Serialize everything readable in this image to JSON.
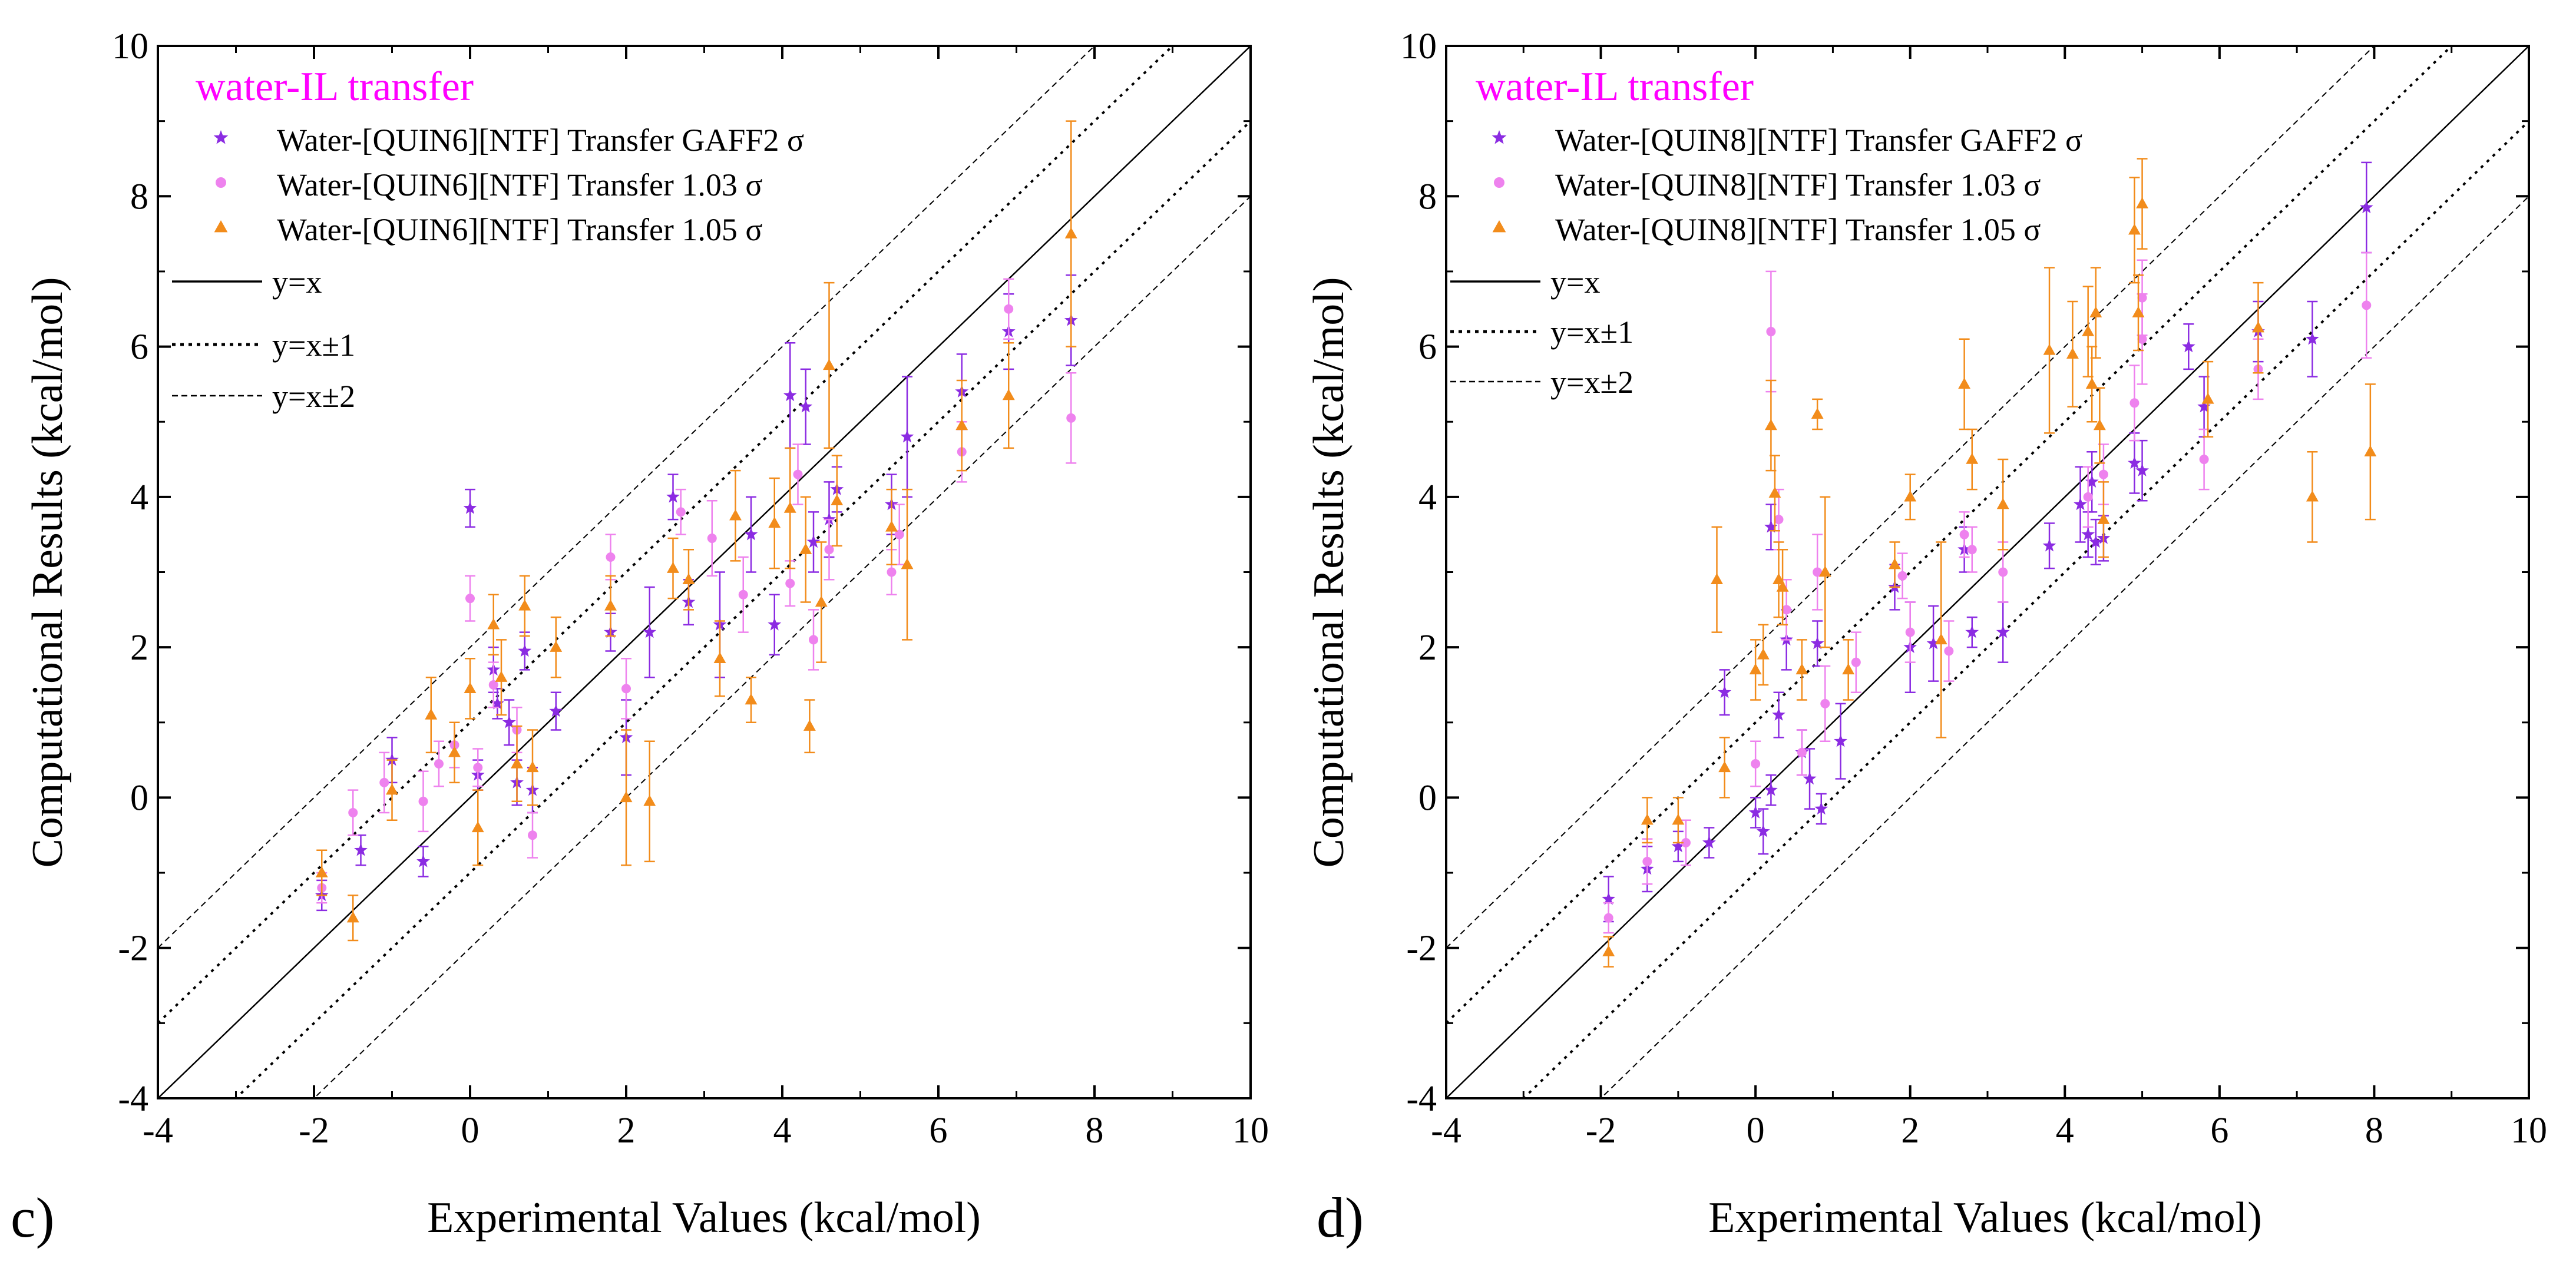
{
  "figure": {
    "colors": {
      "gaff2": "#8B2BE2",
      "s103": "#EE82EE",
      "s105": "#F28C1B",
      "title": "#FF00FF"
    }
  },
  "chart_data": [
    {
      "type": "scatter",
      "panel_label": "c)",
      "title": "water-IL transfer",
      "xlabel": "Experimental Values (kcal/mol)",
      "ylabel": "Computational Results (kcal/mol)",
      "xlim": [
        -4,
        10
      ],
      "ylim": [
        -4,
        10
      ],
      "xticks": [
        "-4",
        "-2",
        "0",
        "2",
        "4",
        "6",
        "8",
        "10"
      ],
      "yticks": [
        "-4",
        "-2",
        "0",
        "2",
        "4",
        "6",
        "8",
        "10"
      ],
      "legend": [
        {
          "label": "Water-[QUIN6][NTF] Transfer GAFF2 σ",
          "marker": "star",
          "color": "#8B2BE2"
        },
        {
          "label": "Water-[QUIN6][NTF] Transfer 1.03 σ",
          "marker": "circle",
          "color": "#EE82EE"
        },
        {
          "label": "Water-[QUIN6][NTF] Transfer 1.05 σ",
          "marker": "triangle",
          "color": "#F28C1B"
        },
        {
          "label": "y=x",
          "line": "solid"
        },
        {
          "label": "y=x±1",
          "line": "dotted"
        },
        {
          "label": "y=x±2",
          "line": "dashed"
        }
      ],
      "series": [
        {
          "name": "Water-[QUIN6][NTF] Transfer GAFF2 σ",
          "points": [
            [
              -1.9,
              -1.3,
              0.2
            ],
            [
              -1.4,
              -0.7,
              0.2
            ],
            [
              -1.0,
              0.5,
              0.3
            ],
            [
              -0.6,
              -0.85,
              0.2
            ],
            [
              0.0,
              3.85,
              0.25
            ],
            [
              0.1,
              0.3,
              0.2
            ],
            [
              0.3,
              1.7,
              0.3
            ],
            [
              0.35,
              1.25,
              0.2
            ],
            [
              0.5,
              1.0,
              0.3
            ],
            [
              0.6,
              0.2,
              0.3
            ],
            [
              0.7,
              1.95,
              0.25
            ],
            [
              0.8,
              0.1,
              0.3
            ],
            [
              1.1,
              1.15,
              0.25
            ],
            [
              1.8,
              2.2,
              0.25
            ],
            [
              2.0,
              0.8,
              0.5
            ],
            [
              2.3,
              2.2,
              0.6
            ],
            [
              2.6,
              4.0,
              0.3
            ],
            [
              2.8,
              2.6,
              0.3
            ],
            [
              3.2,
              2.3,
              0.7
            ],
            [
              3.6,
              3.5,
              0.5
            ],
            [
              3.9,
              2.3,
              0.4
            ],
            [
              4.1,
              5.35,
              0.7
            ],
            [
              4.3,
              5.2,
              0.5
            ],
            [
              4.4,
              3.4,
              0.4
            ],
            [
              4.6,
              3.7,
              0.5
            ],
            [
              4.7,
              4.1,
              0.3
            ],
            [
              5.4,
              3.9,
              0.4
            ],
            [
              5.6,
              4.8,
              0.8
            ],
            [
              6.3,
              5.4,
              0.5
            ],
            [
              6.9,
              6.2,
              0.5
            ],
            [
              7.7,
              6.35,
              0.6
            ]
          ]
        },
        {
          "name": "Water-[QUIN6][NTF] Transfer 1.03 σ",
          "points": [
            [
              -1.9,
              -1.2,
              0.2
            ],
            [
              -1.5,
              -0.2,
              0.3
            ],
            [
              -1.1,
              0.2,
              0.4
            ],
            [
              -0.6,
              -0.05,
              0.4
            ],
            [
              -0.4,
              0.45,
              0.3
            ],
            [
              -0.2,
              0.7,
              0.3
            ],
            [
              0.0,
              2.65,
              0.3
            ],
            [
              0.1,
              0.4,
              0.25
            ],
            [
              0.3,
              1.5,
              0.3
            ],
            [
              0.6,
              0.9,
              0.3
            ],
            [
              0.8,
              -0.5,
              0.3
            ],
            [
              1.8,
              3.2,
              0.3
            ],
            [
              2.0,
              1.45,
              0.4
            ],
            [
              2.7,
              3.8,
              0.3
            ],
            [
              3.1,
              3.45,
              0.5
            ],
            [
              3.5,
              2.7,
              0.5
            ],
            [
              4.1,
              2.85,
              0.3
            ],
            [
              4.2,
              4.3,
              0.4
            ],
            [
              4.4,
              2.1,
              0.4
            ],
            [
              4.6,
              3.3,
              0.4
            ],
            [
              5.4,
              3.0,
              0.3
            ],
            [
              5.5,
              3.5,
              0.4
            ],
            [
              6.3,
              4.6,
              0.4
            ],
            [
              6.9,
              6.5,
              0.4
            ],
            [
              7.7,
              5.05,
              0.6
            ]
          ]
        },
        {
          "name": "Water-[QUIN6][NTF] Transfer 1.05 σ",
          "points": [
            [
              -1.9,
              -1.0,
              0.3
            ],
            [
              -1.5,
              -1.6,
              0.3
            ],
            [
              -1.0,
              0.1,
              0.4
            ],
            [
              -0.5,
              1.1,
              0.5
            ],
            [
              -0.2,
              0.6,
              0.4
            ],
            [
              0.0,
              1.45,
              0.4
            ],
            [
              0.1,
              -0.4,
              0.5
            ],
            [
              0.3,
              2.3,
              0.4
            ],
            [
              0.4,
              1.6,
              0.5
            ],
            [
              0.6,
              0.45,
              0.5
            ],
            [
              0.7,
              2.55,
              0.4
            ],
            [
              0.8,
              0.4,
              0.5
            ],
            [
              1.1,
              2.0,
              0.4
            ],
            [
              1.8,
              2.55,
              0.4
            ],
            [
              2.0,
              0.0,
              0.9
            ],
            [
              2.3,
              -0.05,
              0.8
            ],
            [
              2.6,
              3.05,
              0.4
            ],
            [
              2.8,
              2.9,
              0.4
            ],
            [
              3.2,
              1.85,
              0.5
            ],
            [
              3.4,
              3.75,
              0.6
            ],
            [
              3.6,
              1.3,
              0.3
            ],
            [
              3.9,
              3.65,
              0.6
            ],
            [
              4.1,
              3.85,
              0.8
            ],
            [
              4.3,
              3.3,
              0.7
            ],
            [
              4.35,
              0.95,
              0.35
            ],
            [
              4.5,
              2.6,
              0.8
            ],
            [
              4.6,
              5.75,
              1.1
            ],
            [
              4.7,
              3.95,
              0.6
            ],
            [
              5.4,
              3.6,
              0.5
            ],
            [
              5.6,
              3.1,
              1.0
            ],
            [
              6.3,
              4.95,
              0.6
            ],
            [
              6.9,
              5.35,
              0.7
            ],
            [
              7.7,
              7.5,
              1.5
            ]
          ]
        }
      ]
    },
    {
      "type": "scatter",
      "panel_label": "d)",
      "title": "water-IL transfer",
      "xlabel": "Experimental Values (kcal/mol)",
      "ylabel": "Computational Results (kcal/mol)",
      "xlim": [
        -4,
        10
      ],
      "ylim": [
        -4,
        10
      ],
      "xticks": [
        "-4",
        "-2",
        "0",
        "2",
        "4",
        "6",
        "8",
        "10"
      ],
      "yticks": [
        "-4",
        "-2",
        "0",
        "2",
        "4",
        "6",
        "8",
        "10"
      ],
      "legend": [
        {
          "label": "Water-[QUIN8][NTF] Transfer GAFF2 σ",
          "marker": "star",
          "color": "#8B2BE2"
        },
        {
          "label": "Water-[QUIN8][NTF] Transfer 1.03 σ",
          "marker": "circle",
          "color": "#EE82EE"
        },
        {
          "label": "Water-[QUIN8][NTF] Transfer 1.05 σ",
          "marker": "triangle",
          "color": "#F28C1B"
        },
        {
          "label": "y=x",
          "line": "solid"
        },
        {
          "label": "y=x±1",
          "line": "dotted"
        },
        {
          "label": "y=x±2",
          "line": "dashed"
        }
      ],
      "series": [
        {
          "name": "Water-[QUIN8][NTF] Transfer GAFF2 σ",
          "points": [
            [
              -1.9,
              -1.35,
              0.3
            ],
            [
              -1.4,
              -0.95,
              0.3
            ],
            [
              -1.0,
              -0.65,
              0.2
            ],
            [
              -0.6,
              -0.6,
              0.2
            ],
            [
              -0.4,
              1.4,
              0.3
            ],
            [
              0.0,
              -0.2,
              0.2
            ],
            [
              0.1,
              -0.45,
              0.3
            ],
            [
              0.2,
              0.1,
              0.2
            ],
            [
              0.2,
              3.6,
              0.3
            ],
            [
              0.3,
              1.1,
              0.3
            ],
            [
              0.4,
              2.1,
              0.4
            ],
            [
              0.6,
              0.6,
              0.3
            ],
            [
              0.7,
              0.25,
              0.4
            ],
            [
              0.8,
              2.05,
              0.3
            ],
            [
              0.85,
              -0.15,
              0.2
            ],
            [
              1.1,
              0.75,
              0.5
            ],
            [
              1.8,
              2.8,
              0.3
            ],
            [
              2.0,
              2.0,
              0.6
            ],
            [
              2.3,
              2.05,
              0.5
            ],
            [
              2.7,
              3.3,
              0.3
            ],
            [
              2.8,
              2.2,
              0.2
            ],
            [
              3.2,
              2.2,
              0.4
            ],
            [
              3.8,
              3.35,
              0.3
            ],
            [
              4.2,
              3.9,
              0.5
            ],
            [
              4.3,
              3.5,
              0.3
            ],
            [
              4.35,
              4.2,
              0.4
            ],
            [
              4.4,
              3.4,
              0.3
            ],
            [
              4.5,
              3.45,
              0.3
            ],
            [
              4.9,
              4.45,
              0.4
            ],
            [
              5.0,
              4.35,
              0.4
            ],
            [
              5.6,
              6.0,
              0.3
            ],
            [
              5.8,
              5.2,
              0.4
            ],
            [
              6.5,
              6.2,
              0.4
            ],
            [
              7.2,
              6.1,
              0.5
            ],
            [
              7.9,
              7.85,
              0.6
            ]
          ]
        },
        {
          "name": "Water-[QUIN8][NTF] Transfer 1.03 σ",
          "points": [
            [
              -1.9,
              -1.6,
              0.2
            ],
            [
              -1.4,
              -0.85,
              0.3
            ],
            [
              -0.9,
              -0.6,
              0.3
            ],
            [
              0.0,
              0.45,
              0.3
            ],
            [
              0.2,
              6.2,
              0.8
            ],
            [
              0.3,
              3.7,
              0.4
            ],
            [
              0.4,
              2.5,
              0.4
            ],
            [
              0.6,
              0.6,
              0.3
            ],
            [
              0.8,
              3.0,
              0.5
            ],
            [
              0.9,
              1.25,
              0.5
            ],
            [
              1.3,
              1.8,
              0.4
            ],
            [
              1.9,
              2.95,
              0.3
            ],
            [
              2.0,
              2.2,
              0.4
            ],
            [
              2.5,
              1.95,
              0.4
            ],
            [
              2.7,
              3.5,
              0.3
            ],
            [
              2.8,
              3.3,
              0.3
            ],
            [
              3.2,
              3.0,
              0.4
            ],
            [
              4.3,
              4.0,
              0.4
            ],
            [
              4.5,
              4.3,
              0.4
            ],
            [
              4.9,
              5.25,
              0.5
            ],
            [
              5.0,
              6.1,
              0.6
            ],
            [
              5.0,
              6.65,
              0.5
            ],
            [
              5.8,
              4.5,
              0.4
            ],
            [
              6.5,
              5.7,
              0.4
            ],
            [
              7.9,
              6.55,
              0.7
            ]
          ]
        },
        {
          "name": "Water-[QUIN8][NTF] Transfer 1.05 σ",
          "points": [
            [
              -1.9,
              -2.05,
              0.2
            ],
            [
              -1.4,
              -0.3,
              0.3
            ],
            [
              -1.0,
              -0.3,
              0.3
            ],
            [
              -0.5,
              2.9,
              0.7
            ],
            [
              -0.4,
              0.4,
              0.4
            ],
            [
              0.0,
              1.7,
              0.4
            ],
            [
              0.1,
              1.9,
              0.4
            ],
            [
              0.2,
              4.95,
              0.6
            ],
            [
              0.25,
              4.05,
              0.5
            ],
            [
              0.3,
              2.9,
              0.5
            ],
            [
              0.35,
              2.8,
              0.5
            ],
            [
              0.6,
              1.7,
              0.4
            ],
            [
              0.8,
              5.1,
              0.2
            ],
            [
              0.9,
              3.0,
              1.0
            ],
            [
              1.2,
              1.7,
              0.4
            ],
            [
              1.8,
              3.1,
              0.3
            ],
            [
              2.0,
              4.0,
              0.3
            ],
            [
              2.4,
              2.1,
              1.3
            ],
            [
              2.7,
              5.5,
              0.6
            ],
            [
              2.8,
              4.5,
              0.4
            ],
            [
              3.2,
              3.9,
              0.6
            ],
            [
              3.8,
              5.95,
              1.1
            ],
            [
              4.1,
              5.9,
              0.7
            ],
            [
              4.3,
              6.2,
              0.6
            ],
            [
              4.35,
              5.5,
              0.5
            ],
            [
              4.4,
              6.45,
              0.6
            ],
            [
              4.45,
              4.95,
              0.5
            ],
            [
              4.5,
              3.7,
              0.5
            ],
            [
              4.9,
              7.55,
              0.7
            ],
            [
              5.0,
              7.9,
              0.6
            ],
            [
              4.95,
              6.45,
              0.5
            ],
            [
              5.85,
              5.3,
              0.5
            ],
            [
              6.5,
              6.25,
              0.6
            ],
            [
              7.2,
              4.0,
              0.6
            ],
            [
              7.95,
              4.6,
              0.9
            ]
          ]
        }
      ]
    }
  ]
}
